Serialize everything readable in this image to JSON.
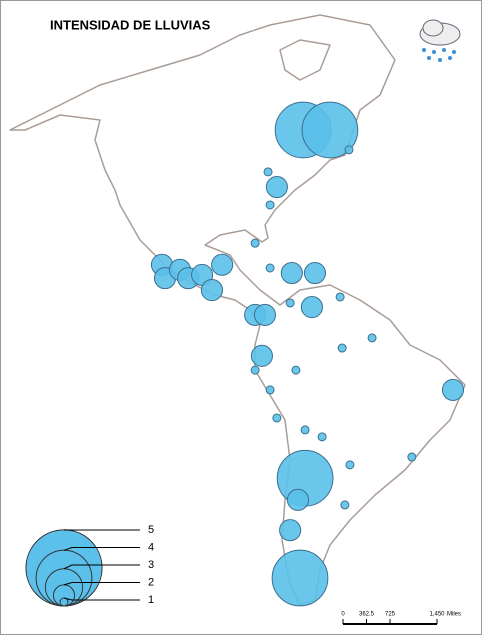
{
  "map": {
    "title": "INTENSIDAD DE LLUVIAS",
    "points": [
      {
        "lon": -79.1,
        "lat": 43.0,
        "value": 4
      },
      {
        "lon": -71.2,
        "lat": 43.0,
        "value": 4
      },
      {
        "lon": -65.6,
        "lat": 38.7,
        "value": 1
      },
      {
        "lon": -89.4,
        "lat": 33.9,
        "value": 1
      },
      {
        "lon": -86.8,
        "lat": 30.6,
        "value": 2
      },
      {
        "lon": -88.8,
        "lat": 26.7,
        "value": 1
      },
      {
        "lon": -93.2,
        "lat": 18.4,
        "value": 1
      },
      {
        "lon": -120.6,
        "lat": 13.7,
        "value": 2
      },
      {
        "lon": -119.7,
        "lat": 10.8,
        "value": 2
      },
      {
        "lon": -115.3,
        "lat": 12.6,
        "value": 2
      },
      {
        "lon": -112.9,
        "lat": 10.8,
        "value": 2
      },
      {
        "lon": -108.8,
        "lat": 11.5,
        "value": 2
      },
      {
        "lon": -105.9,
        "lat": 8.2,
        "value": 2
      },
      {
        "lon": -102.9,
        "lat": 13.7,
        "value": 2
      },
      {
        "lon": -88.8,
        "lat": 13.0,
        "value": 1
      },
      {
        "lon": -82.4,
        "lat": 11.9,
        "value": 2
      },
      {
        "lon": -75.6,
        "lat": 11.9,
        "value": 2
      },
      {
        "lon": -93.2,
        "lat": 2.8,
        "value": 2
      },
      {
        "lon": -90.3,
        "lat": 2.8,
        "value": 2
      },
      {
        "lon": -82.9,
        "lat": 5.4,
        "value": 1
      },
      {
        "lon": -76.5,
        "lat": 4.5,
        "value": 2
      },
      {
        "lon": -68.2,
        "lat": 6.7,
        "value": 1
      },
      {
        "lon": -91.2,
        "lat": -6.1,
        "value": 2
      },
      {
        "lon": -93.2,
        "lat": -9.2,
        "value": 1
      },
      {
        "lon": -81.2,
        "lat": -9.2,
        "value": 1
      },
      {
        "lon": -67.6,
        "lat": -4.4,
        "value": 1
      },
      {
        "lon": -58.8,
        "lat": -2.2,
        "value": 1
      },
      {
        "lon": -35.0,
        "lat": -13.5,
        "value": 2
      },
      {
        "lon": -88.8,
        "lat": -13.5,
        "value": 1
      },
      {
        "lon": -86.8,
        "lat": -19.6,
        "value": 1
      },
      {
        "lon": -78.5,
        "lat": -22.2,
        "value": 1
      },
      {
        "lon": -73.5,
        "lat": -23.7,
        "value": 1
      },
      {
        "lon": -78.5,
        "lat": -32.7,
        "value": 4
      },
      {
        "lon": -80.6,
        "lat": -37.4,
        "value": 2
      },
      {
        "lon": -65.3,
        "lat": -29.8,
        "value": 1
      },
      {
        "lon": -47.1,
        "lat": -28.1,
        "value": 1
      },
      {
        "lon": -66.8,
        "lat": -38.5,
        "value": 1
      },
      {
        "lon": -82.9,
        "lat": -44.0,
        "value": 2
      },
      {
        "lon": -80.0,
        "lat": -54.4,
        "value": 4
      }
    ],
    "color": "#5bc0ea",
    "legend": [
      5,
      4,
      3,
      2,
      1
    ],
    "scale_bar": {
      "ticks": [
        0,
        362.5,
        725,
        {
          "value": 1450,
          "label": "1,450"
        }
      ],
      "unit": "Miles"
    }
  }
}
